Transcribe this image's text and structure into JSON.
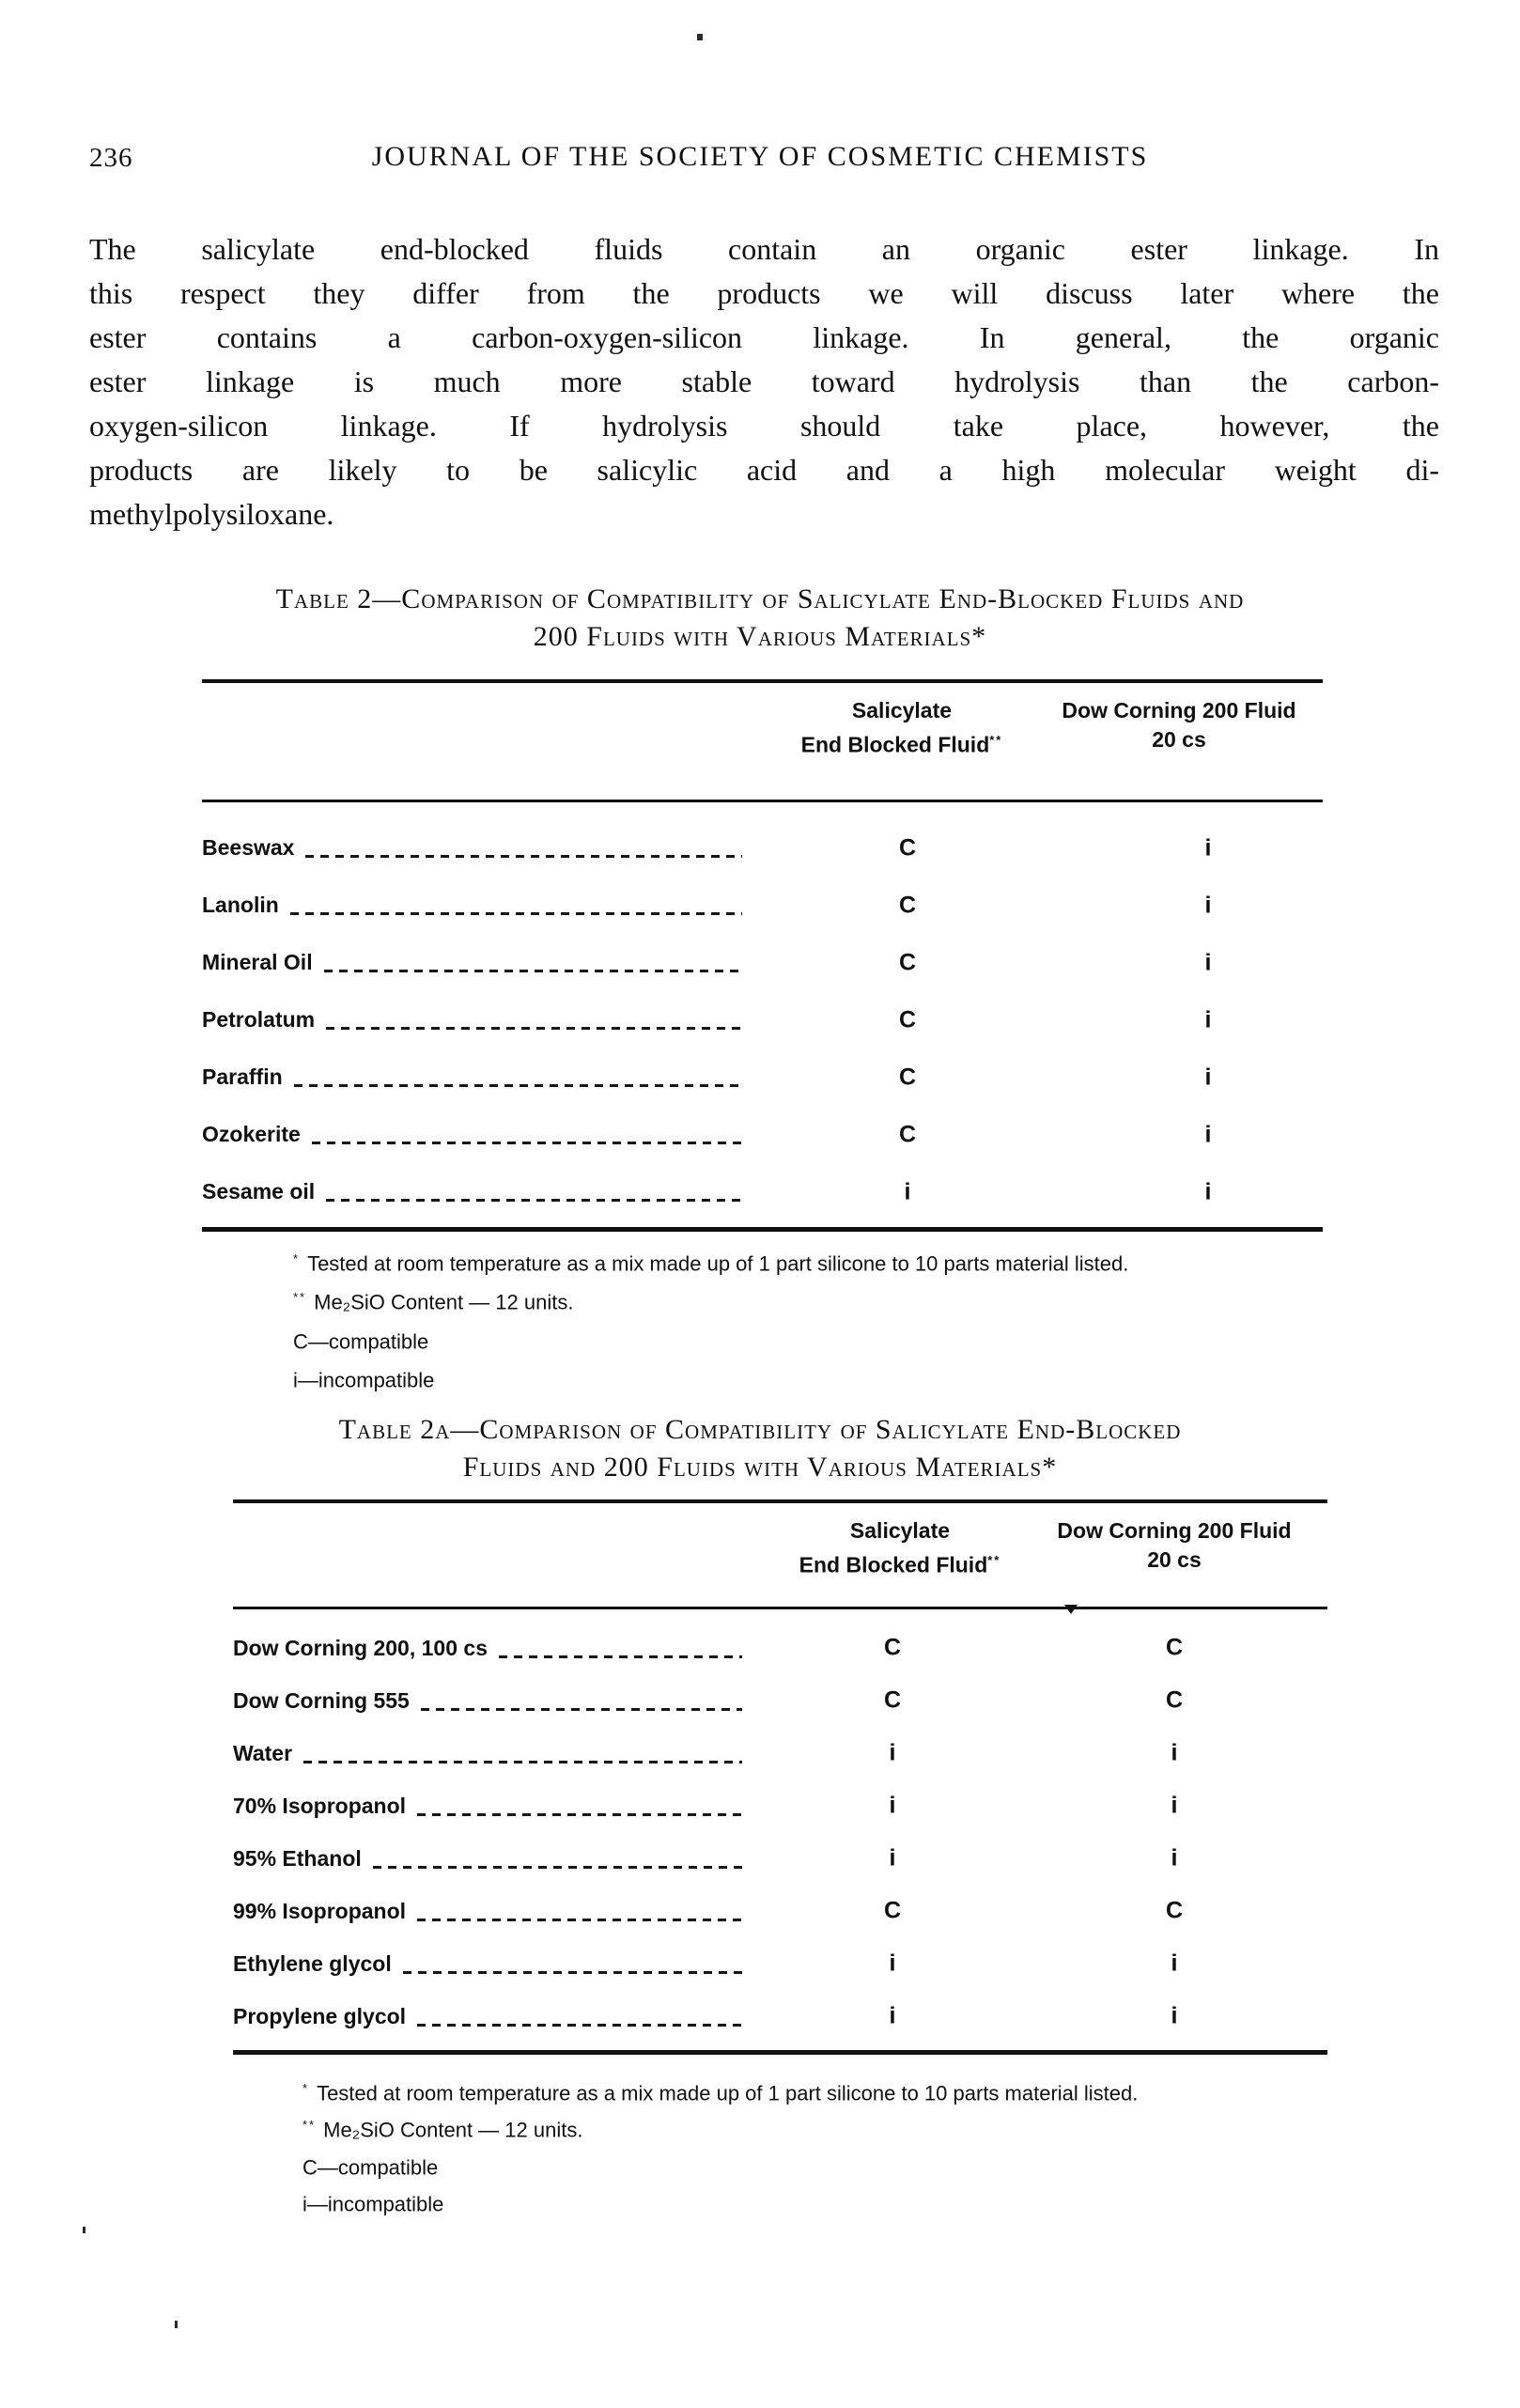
{
  "colors": {
    "ink": "#101010",
    "paper": "#ffffff"
  },
  "page": {
    "number": "236",
    "header": "JOURNAL OF THE SOCIETY OF COSMETIC CHEMISTS",
    "paragraph_lines": [
      "The salicylate end-blocked fluids contain an organic ester linkage. In",
      "this respect they differ from the products we will discuss later where the",
      "ester contains a carbon-oxygen-silicon linkage. In general, the organic",
      "ester linkage is much more stable toward hydrolysis than the carbon-",
      "oxygen-silicon linkage. If hydrolysis should take place, however, the",
      "products are likely to be salicylic acid and a high molecular weight di-",
      "methylpolysiloxane."
    ]
  },
  "table2": {
    "title_line1": "Table 2—Comparison of Compatibility of Salicylate End-Blocked Fluids and",
    "title_line2": "200 Fluids with Various Materials*",
    "columns": {
      "col1_line1": "Salicylate",
      "col1_line2": "End Blocked Fluid",
      "col1_marker": "**",
      "col2_line1": "Dow Corning 200 Fluid",
      "col2_line2": "20 cs"
    },
    "rows": [
      {
        "material": "Beeswax",
        "v1": "C",
        "v2": "i"
      },
      {
        "material": "Lanolin",
        "v1": "C",
        "v2": "i"
      },
      {
        "material": "Mineral Oil",
        "v1": "C",
        "v2": "i"
      },
      {
        "material": "Petrolatum",
        "v1": "C",
        "v2": "i"
      },
      {
        "material": "Paraffin",
        "v1": "C",
        "v2": "i"
      },
      {
        "material": "Ozokerite",
        "v1": "C",
        "v2": "i"
      },
      {
        "material": "Sesame oil",
        "v1": "i",
        "v2": "i"
      }
    ],
    "footnotes": [
      {
        "marker": "*",
        "text": "Tested at room temperature as a mix made up of 1 part silicone to 10 parts material listed."
      },
      {
        "marker": "**",
        "text": "Me₂SiO Content — 12 units."
      },
      {
        "marker": "",
        "text": "C—compatible"
      },
      {
        "marker": "",
        "text": "i—incompatible"
      }
    ]
  },
  "table2a": {
    "title_line1": "Table 2a—Comparison of Compatibility of Salicylate End-Blocked",
    "title_line2": "Fluids and 200 Fluids with Various Materials*",
    "columns": {
      "col1_line1": "Salicylate",
      "col1_line2": "End Blocked Fluid",
      "col1_marker": "**",
      "col2_line1": "Dow Corning 200 Fluid",
      "col2_line2": "20 cs"
    },
    "rows": [
      {
        "material": "Dow Corning 200, 100 cs",
        "v1": "C",
        "v2": "C"
      },
      {
        "material": "Dow Corning 555",
        "v1": "C",
        "v2": "C"
      },
      {
        "material": "Water",
        "v1": "i",
        "v2": "i"
      },
      {
        "material": "70% Isopropanol",
        "v1": "i",
        "v2": "i"
      },
      {
        "material": "95% Ethanol",
        "v1": "i",
        "v2": "i"
      },
      {
        "material": "99% Isopropanol",
        "v1": "C",
        "v2": "C"
      },
      {
        "material": "Ethylene glycol",
        "v1": "i",
        "v2": "i"
      },
      {
        "material": "Propylene glycol",
        "v1": "i",
        "v2": "i"
      }
    ],
    "footnotes": [
      {
        "marker": "*",
        "text": "Tested at room temperature as a mix made up of 1 part silicone to 10 parts material listed."
      },
      {
        "marker": "**",
        "text": "Me₂SiO Content — 12 units."
      },
      {
        "marker": "",
        "text": "C—compatible"
      },
      {
        "marker": "",
        "text": "i—incompatible"
      }
    ]
  }
}
